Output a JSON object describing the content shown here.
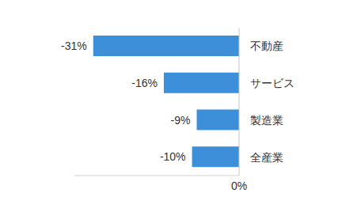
{
  "chart_data": {
    "type": "bar",
    "orientation": "horizontal",
    "categories": [
      "不動産",
      "サービス",
      "製造業",
      "全産業"
    ],
    "values": [
      -31,
      -16,
      -9,
      -10
    ],
    "value_labels": [
      "-31%",
      "-16%",
      "-9%",
      "-10%"
    ],
    "color": "#3d8fd9",
    "xlim": [
      -35,
      0
    ],
    "xticks": [
      {
        "value": 0,
        "label": "0%"
      }
    ],
    "grid": false,
    "data_labels": true
  }
}
